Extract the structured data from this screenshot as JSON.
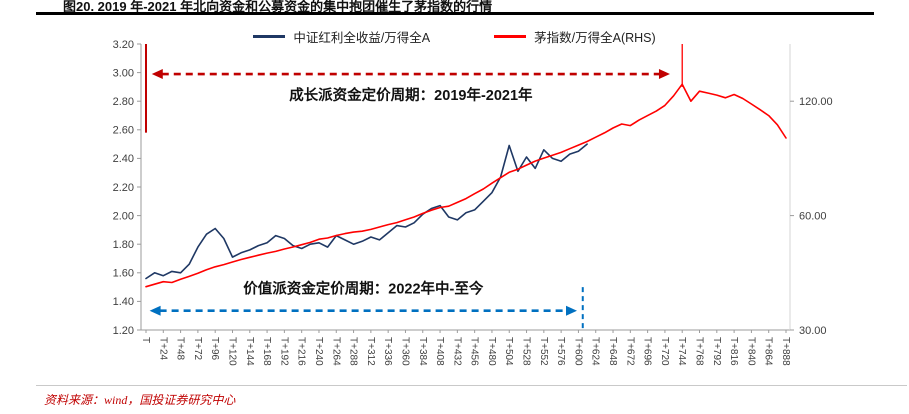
{
  "header": {
    "title": "图20. 2019 年-2021 年北向资金和公募资金的集中抱团催生了茅指数的行情"
  },
  "legend": {
    "items": [
      {
        "label": "中证红利全收益/万得全A",
        "color": "#1f3864"
      },
      {
        "label": "茅指数/万得全A(RHS)",
        "color": "#ff0000"
      }
    ]
  },
  "footer": {
    "source": "资料来源：wind，国投证券研究中心"
  },
  "chart_data": {
    "type": "line",
    "title": "图20. 2019 年-2021 年北向资金和公募资金的集中抱团催生了茅指数的行情",
    "grid": false,
    "legend_position": "top-center",
    "x_unit": "trading days offset (T+n)",
    "x_max": 888,
    "x_tick_labels": [
      "T",
      "T+24",
      "T+48",
      "T+72",
      "T+96",
      "T+120",
      "T+144",
      "T+168",
      "T+192",
      "T+216",
      "T+240",
      "T+264",
      "T+288",
      "T+312",
      "T+336",
      "T+360",
      "T+384",
      "T+408",
      "T+432",
      "T+456",
      "T+480",
      "T+504",
      "T+528",
      "T+552",
      "T+576",
      "T+600",
      "T+624",
      "T+648",
      "T+672",
      "T+696",
      "T+720",
      "T+744",
      "T+768",
      "T+792",
      "T+816",
      "T+840",
      "T+864",
      "T+888"
    ],
    "left_axis": {
      "min": 1.2,
      "max": 3.2,
      "ticks": [
        "3.20",
        "3.00",
        "2.80",
        "2.60",
        "2.40",
        "2.20",
        "2.00",
        "1.80",
        "1.60",
        "1.40",
        "1.20"
      ]
    },
    "right_axis": {
      "scale": "log2",
      "anchor_left_value": 1.2,
      "anchor_right_value": 30,
      "left_units_per_doubling": 0.8,
      "labels": [
        {
          "value": 120,
          "text": "120.00"
        },
        {
          "value": 60,
          "text": "60.00"
        },
        {
          "value": 30,
          "text": "30.00"
        }
      ]
    },
    "series": [
      {
        "name": "中证红利全收益/万得全A",
        "axis": "left",
        "color": "#1f3864",
        "x_step": 12,
        "values": [
          1.56,
          1.6,
          1.58,
          1.61,
          1.6,
          1.66,
          1.78,
          1.87,
          1.91,
          1.84,
          1.71,
          1.74,
          1.76,
          1.79,
          1.81,
          1.86,
          1.84,
          1.79,
          1.77,
          1.8,
          1.81,
          1.78,
          1.86,
          1.83,
          1.8,
          1.82,
          1.85,
          1.83,
          1.88,
          1.93,
          1.92,
          1.95,
          2.01,
          2.05,
          2.07,
          1.99,
          1.97,
          2.02,
          2.04,
          2.1,
          2.16,
          2.27,
          2.49,
          2.31,
          2.41,
          2.33,
          2.46,
          2.4,
          2.38,
          2.43,
          2.45,
          2.5
        ]
      },
      {
        "name": "茅指数/万得全A(RHS)",
        "axis": "right",
        "color": "#ff0000",
        "x_step": 12,
        "values": [
          39.0,
          39.6,
          40.2,
          40.0,
          40.8,
          41.5,
          42.3,
          43.2,
          44.0,
          44.6,
          45.3,
          46.0,
          46.6,
          47.2,
          47.8,
          48.3,
          49.0,
          49.6,
          50.3,
          51.0,
          52.0,
          52.4,
          53.2,
          53.8,
          54.3,
          54.6,
          55.2,
          56.0,
          56.8,
          57.5,
          58.5,
          59.5,
          60.8,
          62.0,
          63.0,
          63.5,
          65.0,
          66.5,
          68.5,
          70.5,
          73.0,
          75.5,
          78.0,
          79.5,
          81.5,
          83.5,
          85.0,
          86.5,
          88.0,
          90.0,
          92.0,
          94.0,
          96.5,
          99.0,
          102.0,
          104.5,
          103.5,
          107.0,
          110.0,
          113.0,
          117.0,
          124.0,
          133.0,
          120.0,
          127.5,
          126.0,
          124.5,
          122.5,
          125.0,
          122.0,
          118.0,
          114.0,
          110.0,
          104.0,
          96.0
        ]
      }
    ],
    "annotations": [
      {
        "name": "growth-period",
        "label": "成长派资金定价周期：2019年-2021年",
        "t_from": 8,
        "t_to": 727,
        "y_left": 2.99,
        "color": "#c00000",
        "label_side": "below"
      },
      {
        "name": "value-period",
        "label": "价值派资金定价周期：2022年中-至今",
        "t_from": 5,
        "t_to": 598,
        "y_left": 1.335,
        "color": "#0070c0",
        "label_side": "above"
      }
    ],
    "markers": [
      {
        "name": "growth-start-line",
        "t": 0,
        "y_from": 3.2,
        "y_to": 2.58,
        "color": "#c00000",
        "width": 2,
        "dash": ""
      },
      {
        "name": "mao-peak-line",
        "t": 744,
        "y_from": 3.2,
        "y_to": 2.9,
        "color": "#ff0000",
        "width": 1.3,
        "dash": ""
      },
      {
        "name": "value-period-end-line",
        "t": 606,
        "y_from": 1.5,
        "y_to": 1.185,
        "color": "#0070c0",
        "width": 2,
        "dash": "5 4"
      }
    ]
  }
}
